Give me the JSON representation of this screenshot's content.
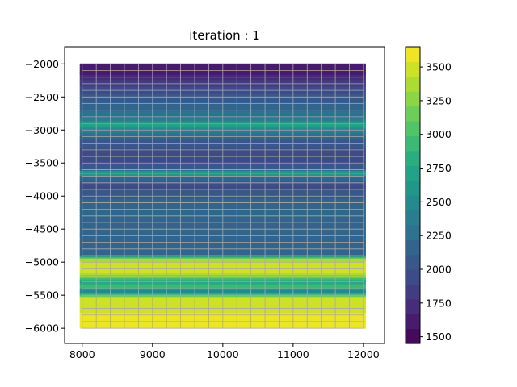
{
  "chart_data": {
    "type": "heatmap",
    "title": "iteration : 1",
    "xlabel": "",
    "ylabel": "",
    "xlim": [
      7750,
      12300
    ],
    "ylim": [
      -6230,
      -1740
    ],
    "xticks": [
      8000,
      9000,
      10000,
      11000,
      12000
    ],
    "yticks": [
      -2000,
      -2500,
      -3000,
      -3500,
      -4000,
      -4500,
      -5000,
      -5500,
      -6000
    ],
    "colorbar": {
      "range": [
        1450,
        3650
      ],
      "ticks": [
        1500,
        1750,
        2000,
        2250,
        2500,
        2750,
        3000,
        3250,
        3500
      ],
      "levels": 20,
      "colormap": "viridis"
    },
    "domain": {
      "x": [
        8000,
        12000
      ],
      "y": [
        -6000,
        -2000
      ]
    },
    "mesh_color": "#a8a8a8",
    "velocity_profile": [
      {
        "depth": -2000,
        "value": 1600
      },
      {
        "depth": -2150,
        "value": 1650
      },
      {
        "depth": -2300,
        "value": 1850
      },
      {
        "depth": -2500,
        "value": 2050
      },
      {
        "depth": -2700,
        "value": 2200
      },
      {
        "depth": -2850,
        "value": 2350
      },
      {
        "depth": -2920,
        "value": 2750
      },
      {
        "depth": -3000,
        "value": 2450
      },
      {
        "depth": -3150,
        "value": 2100
      },
      {
        "depth": -3400,
        "value": 1900
      },
      {
        "depth": -3600,
        "value": 2050
      },
      {
        "depth": -3660,
        "value": 2900
      },
      {
        "depth": -3720,
        "value": 2200
      },
      {
        "depth": -3850,
        "value": 1950
      },
      {
        "depth": -4000,
        "value": 2100
      },
      {
        "depth": -4500,
        "value": 2200
      },
      {
        "depth": -4900,
        "value": 2200
      },
      {
        "depth": -4960,
        "value": 3400
      },
      {
        "depth": -5100,
        "value": 3550
      },
      {
        "depth": -5200,
        "value": 3400
      },
      {
        "depth": -5300,
        "value": 2700
      },
      {
        "depth": -5380,
        "value": 2950
      },
      {
        "depth": -5450,
        "value": 2400
      },
      {
        "depth": -5550,
        "value": 3500
      },
      {
        "depth": -6000,
        "value": 3580
      }
    ]
  }
}
